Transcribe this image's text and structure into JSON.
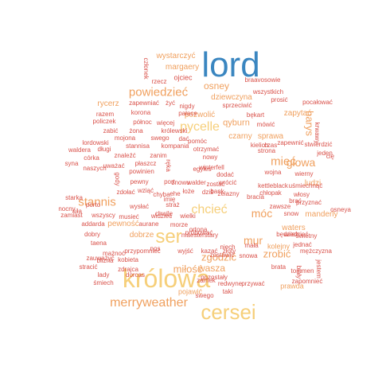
{
  "palette": {
    "blue": "#3a86c0",
    "yellow": "#f6cf7a",
    "orange": "#f0a05e",
    "red": "#d9514a"
  },
  "words": [
    {
      "text": "lord",
      "color": "blue"
    },
    {
      "text": "królowa",
      "color": "yellow"
    },
    {
      "text": "cersei",
      "color": "yellow"
    },
    {
      "text": "ser",
      "color": "yellow"
    },
    {
      "text": "merryweather",
      "color": "orange"
    },
    {
      "text": "pycelle",
      "color": "yellow"
    },
    {
      "text": "chcieć",
      "color": "yellow"
    },
    {
      "text": "powiedzieć",
      "color": "orange"
    },
    {
      "text": "stannis",
      "color": "orange"
    },
    {
      "text": "głowa",
      "color": "orange"
    },
    {
      "text": "mieć",
      "color": "orange"
    },
    {
      "text": "móc",
      "color": "orange"
    },
    {
      "text": "mur",
      "color": "orange"
    },
    {
      "text": "zrobić",
      "color": "orange"
    },
    {
      "text": "zgodzić",
      "color": "orange"
    },
    {
      "text": "waszа",
      "color": "orange"
    },
    {
      "text": "miłość",
      "color": "orange"
    },
    {
      "text": "osney",
      "color": "orange"
    },
    {
      "text": "harys",
      "color": "orange"
    },
    {
      "text": "wystarczyć",
      "color": "orange"
    },
    {
      "text": "margaery",
      "color": "orange"
    },
    {
      "text": "dziewczyna",
      "color": "orange"
    },
    {
      "text": "qyburn",
      "color": "orange"
    },
    {
      "text": "czarny",
      "color": "orange"
    },
    {
      "text": "sprawa",
      "color": "orange"
    },
    {
      "text": "ludzi",
      "color": "orange"
    },
    {
      "text": "rycerz",
      "color": "orange"
    },
    {
      "text": "pozwolić",
      "color": "orange"
    },
    {
      "text": "zapytać",
      "color": "orange"
    },
    {
      "text": "waters",
      "color": "orange"
    },
    {
      "text": "manderly",
      "color": "orange"
    },
    {
      "text": "pojawić",
      "color": "orange"
    },
    {
      "text": "prawda",
      "color": "orange"
    },
    {
      "text": "kolejny",
      "color": "orange"
    },
    {
      "text": "pewność",
      "color": "orange"
    },
    {
      "text": "dobrze",
      "color": "orange"
    },
    {
      "text": "ojciec",
      "color": "red"
    },
    {
      "text": "rzecz",
      "color": "red"
    },
    {
      "text": "członek",
      "color": "red"
    },
    {
      "text": "braavosowie",
      "color": "red"
    },
    {
      "text": "wszystkich",
      "color": "red"
    },
    {
      "text": "pocałować",
      "color": "red"
    },
    {
      "text": "prosić",
      "color": "red"
    },
    {
      "text": "sprzeciwić",
      "color": "red"
    },
    {
      "text": "nigdy",
      "color": "red"
    },
    {
      "text": "żyć",
      "color": "red"
    },
    {
      "text": "zapewniać",
      "color": "red"
    },
    {
      "text": "korona",
      "color": "red"
    },
    {
      "text": "pałace",
      "color": "red"
    },
    {
      "text": "razem",
      "color": "red"
    },
    {
      "text": "północ",
      "color": "red"
    },
    {
      "text": "więcej",
      "color": "red"
    },
    {
      "text": "policzek",
      "color": "red"
    },
    {
      "text": "bękart",
      "color": "red"
    },
    {
      "text": "mówić",
      "color": "red"
    },
    {
      "text": "zabić",
      "color": "red"
    },
    {
      "text": "żona",
      "color": "red"
    },
    {
      "text": "królewski",
      "color": "red"
    },
    {
      "text": "mojona",
      "color": "red"
    },
    {
      "text": "swego",
      "color": "red"
    },
    {
      "text": "dać",
      "color": "red"
    },
    {
      "text": "pomóc",
      "color": "red"
    },
    {
      "text": "kielich",
      "color": "red"
    },
    {
      "text": "zapewnić",
      "color": "red"
    },
    {
      "text": "stwierdzić",
      "color": "red"
    },
    {
      "text": "jeden",
      "color": "red"
    },
    {
      "text": "krwawy",
      "color": "red"
    },
    {
      "text": "cię",
      "color": "red"
    },
    {
      "text": "lordowski",
      "color": "red"
    },
    {
      "text": "stannisa",
      "color": "red"
    },
    {
      "text": "kompania",
      "color": "red"
    },
    {
      "text": "otrzymać",
      "color": "red"
    },
    {
      "text": "strona",
      "color": "red"
    },
    {
      "text": "czas",
      "color": "red"
    },
    {
      "text": "waldera",
      "color": "red"
    },
    {
      "text": "długi",
      "color": "red"
    },
    {
      "text": "znaleźć",
      "color": "red"
    },
    {
      "text": "zanim",
      "color": "red"
    },
    {
      "text": "nowy",
      "color": "red"
    },
    {
      "text": "córka",
      "color": "red"
    },
    {
      "text": "syna",
      "color": "red"
    },
    {
      "text": "płaszcz",
      "color": "red"
    },
    {
      "text": "uważać",
      "color": "red"
    },
    {
      "text": "naszych",
      "color": "red"
    },
    {
      "text": "powinien",
      "color": "red"
    },
    {
      "text": "egyles",
      "color": "red"
    },
    {
      "text": "ręka",
      "color": "red"
    },
    {
      "text": "winterfell",
      "color": "red"
    },
    {
      "text": "wojna",
      "color": "red"
    },
    {
      "text": "wierny",
      "color": "red"
    },
    {
      "text": "dodać",
      "color": "red"
    },
    {
      "text": "gody",
      "color": "red"
    },
    {
      "text": "pewny",
      "color": "red"
    },
    {
      "text": "port",
      "color": "red"
    },
    {
      "text": "znowu",
      "color": "red"
    },
    {
      "text": "walder",
      "color": "red"
    },
    {
      "text": "wrócić",
      "color": "red"
    },
    {
      "text": "kettleblack",
      "color": "red"
    },
    {
      "text": "uśmiechnąć",
      "color": "red"
    },
    {
      "text": "osneya",
      "color": "red"
    },
    {
      "text": "starka",
      "color": "red"
    },
    {
      "text": "siła",
      "color": "red"
    },
    {
      "text": "zdołać",
      "color": "red"
    },
    {
      "text": "wszyscy",
      "color": "red"
    },
    {
      "text": "wziąć",
      "color": "red"
    },
    {
      "text": "ehe",
      "color": "red"
    },
    {
      "text": "łoże",
      "color": "red"
    },
    {
      "text": "dziś",
      "color": "red"
    },
    {
      "text": "żelazny",
      "color": "red"
    },
    {
      "text": "bank",
      "color": "red"
    },
    {
      "text": "zostać",
      "color": "red"
    },
    {
      "text": "chyba",
      "color": "red"
    },
    {
      "text": "bracia",
      "color": "red"
    },
    {
      "text": "chłopak",
      "color": "red"
    },
    {
      "text": "włosy",
      "color": "red"
    },
    {
      "text": "brać",
      "color": "red"
    },
    {
      "text": "przyznać",
      "color": "red"
    },
    {
      "text": "zawsze",
      "color": "red"
    },
    {
      "text": "snow",
      "color": "red"
    },
    {
      "text": "nocny",
      "color": "red"
    },
    {
      "text": "porto",
      "color": "red"
    },
    {
      "text": "wysłać",
      "color": "red"
    },
    {
      "text": "straż",
      "color": "red"
    },
    {
      "text": "imię",
      "color": "red"
    },
    {
      "text": "zamiast",
      "color": "red"
    },
    {
      "text": "addarda",
      "color": "red"
    },
    {
      "text": "aurane",
      "color": "red"
    },
    {
      "text": "morze",
      "color": "red"
    },
    {
      "text": "ortona",
      "color": "red"
    },
    {
      "text": "próbować",
      "color": "red"
    },
    {
      "text": "maesterstary",
      "color": "red"
    },
    {
      "text": "świetny",
      "color": "red"
    },
    {
      "text": "dobry",
      "color": "red"
    },
    {
      "text": "taena",
      "color": "red"
    },
    {
      "text": "musieć",
      "color": "red"
    },
    {
      "text": "widzieć",
      "color": "red"
    },
    {
      "text": "wielki",
      "color": "red"
    },
    {
      "text": "chwilę",
      "color": "red"
    },
    {
      "text": "niech",
      "color": "red"
    },
    {
      "text": "mała",
      "color": "red"
    },
    {
      "text": "złoty",
      "color": "red"
    },
    {
      "text": "będzież",
      "color": "red"
    },
    {
      "text": "wiedzieć",
      "color": "red"
    },
    {
      "text": "jednać",
      "color": "red"
    },
    {
      "text": "mężczyzna",
      "color": "red"
    },
    {
      "text": "mażnoć",
      "color": "red"
    },
    {
      "text": "blizna",
      "color": "red"
    },
    {
      "text": "nos",
      "color": "red"
    },
    {
      "text": "wyjść",
      "color": "red"
    },
    {
      "text": "kazać",
      "color": "red"
    },
    {
      "text": "zauważyć",
      "color": "red"
    },
    {
      "text": "kobieta",
      "color": "red"
    },
    {
      "text": "przypomnieć",
      "color": "red"
    },
    {
      "text": "zostawić",
      "color": "red"
    },
    {
      "text": "stracić",
      "color": "red"
    },
    {
      "text": "zdrajca",
      "color": "red"
    },
    {
      "text": "dorcas",
      "color": "red"
    },
    {
      "text": "snowa",
      "color": "red"
    },
    {
      "text": "brata",
      "color": "red"
    },
    {
      "text": "tommen",
      "color": "red"
    },
    {
      "text": "zapomnieć",
      "color": "red"
    },
    {
      "text": "jestem",
      "color": "red"
    },
    {
      "text": "biały",
      "color": "red"
    },
    {
      "text": "lady",
      "color": "red"
    },
    {
      "text": "śmiech",
      "color": "red"
    },
    {
      "text": "zamek",
      "color": "red"
    },
    {
      "text": "taki",
      "color": "red"
    },
    {
      "text": "pozostały",
      "color": "red"
    },
    {
      "text": "redwyne",
      "color": "red"
    },
    {
      "text": "przywać",
      "color": "red"
    },
    {
      "text": "swego",
      "color": "red"
    }
  ]
}
